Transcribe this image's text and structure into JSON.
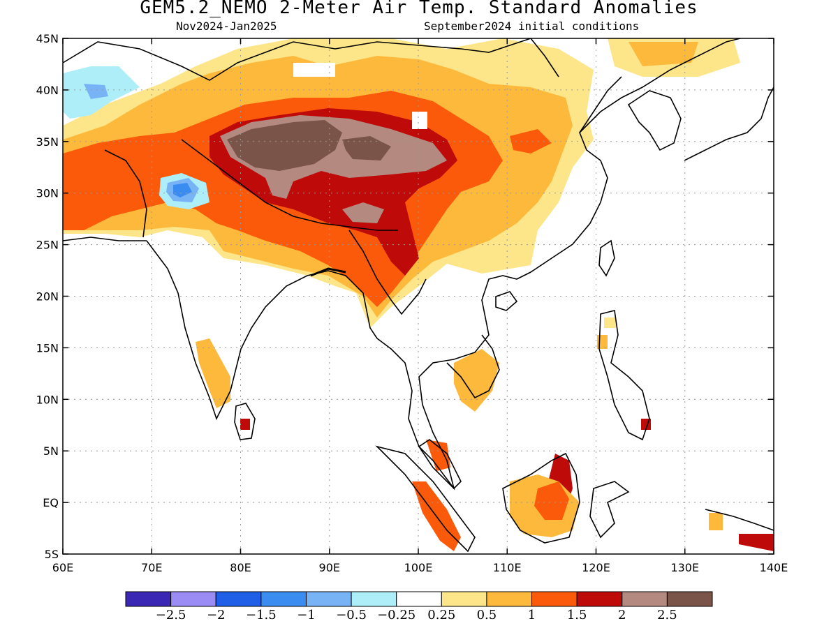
{
  "title": "GEM5.2_NEMO 2-Meter Air Temp. Standard Anomalies",
  "subtitle_left": "Nov2024-Jan2025",
  "subtitle_right": "September2024 initial conditions",
  "axes": {
    "lon_labels": [
      "60E",
      "70E",
      "80E",
      "90E",
      "100E",
      "110E",
      "120E",
      "130E",
      "140E"
    ],
    "lat_labels": [
      "45N",
      "40N",
      "35N",
      "30N",
      "25N",
      "20N",
      "15N",
      "10N",
      "5N",
      "EQ",
      "5S"
    ],
    "lon_range": [
      60,
      140
    ],
    "lat_range": [
      -5,
      45
    ],
    "grid": "dotted"
  },
  "colorbar": {
    "colors": [
      "#3a28b4",
      "#9b8cf5",
      "#1f5fe8",
      "#3a8cf0",
      "#78b4f5",
      "#aeeef8",
      "#ffffff",
      "#fde68a",
      "#fdb93c",
      "#fb5a0a",
      "#bf0a0a",
      "#b48a80",
      "#7a5448"
    ],
    "labels": [
      "−2.5",
      "−2",
      "−1.5",
      "−1",
      "−0.5",
      "−0.25",
      "0.25",
      "0.5",
      "1",
      "1.5",
      "2",
      "2.5"
    ]
  },
  "chart_data": {
    "type": "heatmap",
    "variable": "2-Meter Air Temp. Standard Anomalies",
    "legend_bins": [
      -2.5,
      -2,
      -1.5,
      -1,
      -0.5,
      -0.25,
      0.25,
      0.5,
      1,
      1.5,
      2,
      2.5
    ],
    "regions": [
      {
        "lon": [
          77,
          100
        ],
        "lat": [
          30,
          36
        ],
        "anomaly": 2.5
      },
      {
        "lon": [
          75,
          103
        ],
        "lat": [
          25,
          36
        ],
        "anomaly": 2.0
      },
      {
        "lon": [
          60,
          80
        ],
        "lat": [
          26,
          36
        ],
        "anomaly": 1.5
      },
      {
        "lon": [
          80,
          105
        ],
        "lat": [
          20,
          30
        ],
        "anomaly": 1.5
      },
      {
        "lon": [
          90,
          122
        ],
        "lat": [
          22,
          42
        ],
        "anomaly": 1.0
      },
      {
        "lon": [
          60,
          66
        ],
        "lat": [
          36,
          42
        ],
        "anomaly": -0.5
      },
      {
        "lon": [
          70,
          75
        ],
        "lat": [
          28,
          31
        ],
        "anomaly": -1.5
      },
      {
        "lon": [
          112,
          117
        ],
        "lat": [
          -3,
          5
        ],
        "anomaly": 1.5
      },
      {
        "lon": [
          136,
          140
        ],
        "lat": [
          -5,
          -3
        ],
        "anomaly": 2.0
      }
    ]
  }
}
